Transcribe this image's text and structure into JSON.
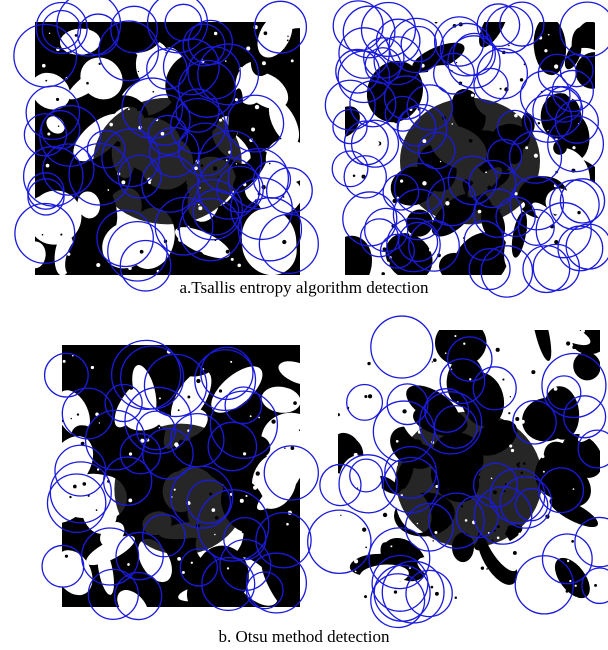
{
  "figure": {
    "captions": [
      "a.Tsallis entropy algorithm detection",
      "b. Otsu method detection"
    ]
  }
}
